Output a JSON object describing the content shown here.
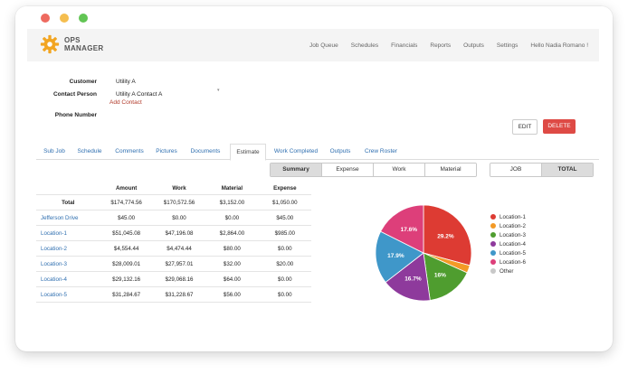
{
  "window": {
    "brand_line1": "OPS",
    "brand_line2": "MANAGER"
  },
  "nav": {
    "links": [
      "Job Queue",
      "Schedules",
      "Financials",
      "Reports",
      "Outputs",
      "Settings",
      "Hello Nadia Romano !"
    ]
  },
  "customer": {
    "customer_label": "Customer",
    "customer_value": "Utility A",
    "contact_label": "Contact Person",
    "contact_value": "Utility A Contact A",
    "add_contact": "Add Contact",
    "phone_label": "Phone Number",
    "phone_value": ""
  },
  "actions": {
    "edit": "EDIT",
    "delete": "DELETE"
  },
  "tabs": [
    "Sub Job",
    "Schedule",
    "Comments",
    "Pictures",
    "Documents",
    "Estimate",
    "Work Completed",
    "Outputs",
    "Crew Roster"
  ],
  "active_tab": "Estimate",
  "view_toggle": {
    "options": [
      "Summary",
      "Expense",
      "Work",
      "Material"
    ],
    "selected": "Summary"
  },
  "scope_toggle": {
    "options": [
      "JOB",
      "TOTAL"
    ],
    "selected": "TOTAL"
  },
  "table": {
    "headers": [
      "",
      "Amount",
      "Work",
      "Material",
      "Expense"
    ],
    "rows": [
      [
        "Total",
        "$174,774.56",
        "$170,572.56",
        "$3,152.00",
        "$1,050.00"
      ],
      [
        "Jefferson Drive",
        "$45.00",
        "$0.00",
        "$0.00",
        "$45.00"
      ],
      [
        "Location-1",
        "$51,045.08",
        "$47,196.08",
        "$2,864.00",
        "$985.00"
      ],
      [
        "Location-2",
        "$4,554.44",
        "$4,474.44",
        "$80.00",
        "$0.00"
      ],
      [
        "Location-3",
        "$28,009.01",
        "$27,957.01",
        "$32.00",
        "$20.00"
      ],
      [
        "Location-4",
        "$29,132.16",
        "$29,068.16",
        "$64.00",
        "$0.00"
      ],
      [
        "Location-5",
        "$31,284.67",
        "$31,228.67",
        "$56.00",
        "$0.00"
      ]
    ]
  },
  "chart_data": {
    "type": "pie",
    "slices": [
      {
        "name": "Location-1",
        "value": 29.2,
        "label": "29.2%",
        "color": "#dd3b33"
      },
      {
        "name": "Location-2",
        "value": 2.6,
        "label": "",
        "color": "#f39a26"
      },
      {
        "name": "Location-3",
        "value": 16.0,
        "label": "16%",
        "color": "#4f9d2f"
      },
      {
        "name": "Location-4",
        "value": 16.7,
        "label": "16.7%",
        "color": "#8e3a9c"
      },
      {
        "name": "Location-5",
        "value": 17.9,
        "label": "17.9%",
        "color": "#3f97c9"
      },
      {
        "name": "Location-6",
        "value": 17.6,
        "label": "17.6%",
        "color": "#dd3f7a"
      },
      {
        "name": "Other",
        "value": 0.0,
        "label": "",
        "color": "#c8c8c8"
      }
    ],
    "legend": [
      "Location-1",
      "Location-2",
      "Location-3",
      "Location-4",
      "Location-5",
      "Location-6",
      "Other"
    ],
    "legend_position": "right"
  }
}
